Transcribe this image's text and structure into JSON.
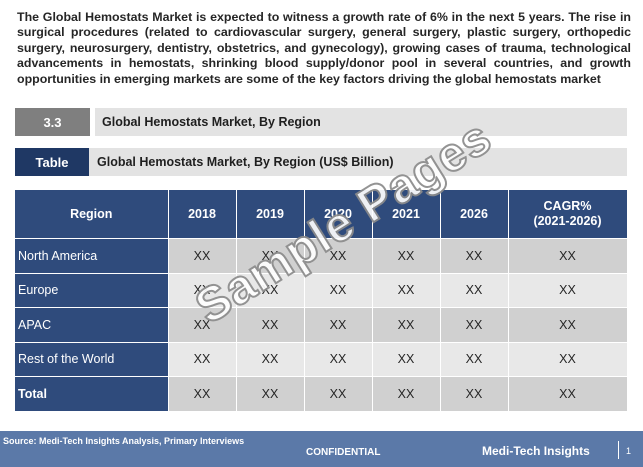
{
  "intro": "The Global Hemostats Market is expected to witness a growth rate of 6% in the next 5 years. The rise in surgical procedures (related to cardiovascular surgery, general surgery, plastic surgery, orthopedic surgery, neurosurgery, dentistry, obstetrics, and gynecology), growing cases of trauma, technological advancements in hemostats, shrinking blood supply/donor pool in several countries, and growth opportunities in emerging markets are some of the key factors driving the global hemostats market",
  "section": {
    "number": "3.3",
    "title": "Global Hemostats Market, By Region"
  },
  "table_caption": {
    "label": "Table",
    "title": "Global Hemostats Market, By Region (US$ Billion)"
  },
  "table": {
    "headers": [
      "Region",
      "2018",
      "2019",
      "2020",
      "2021",
      "2026",
      "CAGR%\n(2021-2026)"
    ],
    "header_cagr_line1": "CAGR%",
    "header_cagr_line2": "(2021-2026)",
    "rows": [
      {
        "region": "North America",
        "values": [
          "XX",
          "XX",
          "XX",
          "XX",
          "XX",
          "XX"
        ]
      },
      {
        "region": "Europe",
        "values": [
          "XX",
          "XX",
          "XX",
          "XX",
          "XX",
          "XX"
        ]
      },
      {
        "region": "APAC",
        "values": [
          "XX",
          "XX",
          "XX",
          "XX",
          "XX",
          "XX"
        ]
      },
      {
        "region": "Rest of the World",
        "values": [
          "XX",
          "XX",
          "XX",
          "XX",
          "XX",
          "XX"
        ]
      },
      {
        "region": "Total",
        "values": [
          "XX",
          "XX",
          "XX",
          "XX",
          "XX",
          "XX"
        ]
      }
    ]
  },
  "watermark": "Sample Pages",
  "footer": {
    "source": "Source: Medi-Tech Insights Analysis, Primary Interviews",
    "confidential": "CONFIDENTIAL",
    "brand": "Medi-Tech Insights",
    "page": "1"
  },
  "colors": {
    "header_blue": "#2f4b7c",
    "table_label_navy": "#1f3864",
    "section_grey": "#7f7f7f",
    "footer_blue": "#5b79a8"
  }
}
